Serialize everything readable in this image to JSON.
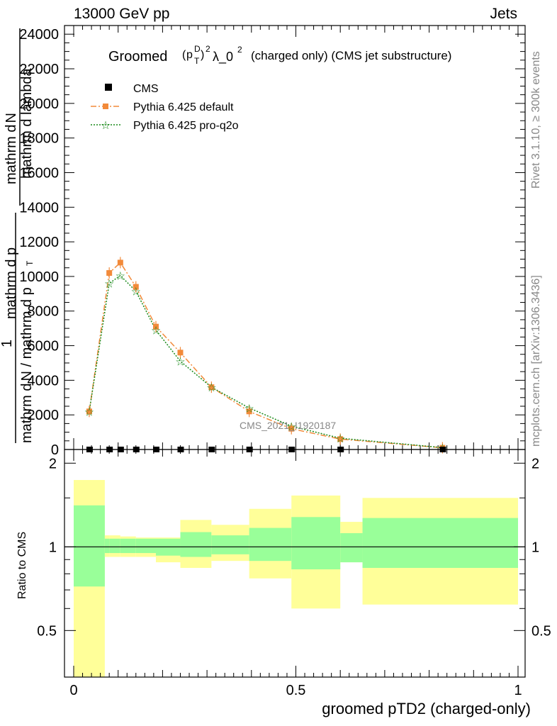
{
  "header": {
    "left": "13000 GeV pp",
    "right": "Jets"
  },
  "side_labels": {
    "rivet": "Rivet 3.1.10, ≥ 300k events",
    "mcplots": "mcplots.cern.ch [arXiv:1306.3436]"
  },
  "chart_data": [
    {
      "type": "line",
      "title": "Groomed (p_T^D)^2 λ_0^2  (charged only) (CMS jet substructure)",
      "title_parts": {
        "lead": "Groomed",
        "p": "p",
        "T": "T",
        "D": "D",
        "two": "2",
        "lam": "λ_0",
        "sup2": "2",
        "tail": "(charged only) (CMS jet substructure)"
      },
      "ylabel_line1": "mathrm d²N",
      "ylabel_line1b": "mathrm d p_T mathrm d lambda",
      "ylabel_line2": "1",
      "ylabel_line2b": "mathrm d N / mathrm d p_T",
      "ylabel_full_1": "mathrm d",
      "ylabel_full_2": "N",
      "ylabel_full_3": "mathrm d p",
      "ylabel_full_4": "T",
      "ylabel_full_5": "mathrm d lambda",
      "ylabel_full_6": "mathrm d",
      "ylabel_full_7": "N / mathrm d p",
      "ylabel_full_8": "T",
      "ylim": [
        0,
        24500
      ],
      "xlim": [
        0,
        1
      ],
      "yticks": [
        0,
        2000,
        4000,
        6000,
        8000,
        10000,
        12000,
        14000,
        16000,
        18000,
        20000,
        22000,
        24000
      ],
      "ytick_labels": [
        "0",
        "2000",
        "4000",
        "6000",
        "8000",
        "10000",
        "12000",
        "14000",
        "16000",
        "18000",
        "20000",
        "22000",
        "24000"
      ],
      "watermark": "CMS_2021_I1920187",
      "legend": {
        "placement": "top-left",
        "entries": [
          "CMS",
          "Pythia 6.425 default",
          "Pythia 6.425 pro-q2o"
        ]
      },
      "series": [
        {
          "name": "CMS",
          "color": "#000000",
          "marker": "square",
          "x": [
            0.035,
            0.08,
            0.105,
            0.14,
            0.185,
            0.24,
            0.31,
            0.395,
            0.49,
            0.6,
            0.83
          ],
          "values": [
            1,
            1,
            1,
            1,
            1,
            1,
            1,
            1,
            1,
            1,
            1
          ]
        },
        {
          "name": "Pythia 6.425 default",
          "color": "#f28a3a",
          "marker": "square",
          "x": [
            0.035,
            0.08,
            0.105,
            0.14,
            0.185,
            0.24,
            0.31,
            0.395,
            0.49,
            0.6,
            0.83
          ],
          "values": [
            2200,
            10200,
            10800,
            9400,
            7100,
            5600,
            3600,
            2200,
            1200,
            600,
            100
          ]
        },
        {
          "name": "Pythia 6.425 pro-q2o",
          "color": "#1a8a1a",
          "marker": "star",
          "x": [
            0.035,
            0.08,
            0.105,
            0.14,
            0.185,
            0.24,
            0.31,
            0.395,
            0.49,
            0.6,
            0.83
          ],
          "values": [
            2200,
            9600,
            10050,
            9150,
            6900,
            5100,
            3600,
            2400,
            1350,
            650,
            110
          ]
        }
      ]
    },
    {
      "type": "area",
      "ylabel": "Ratio to CMS",
      "xlabel": "groomed pTD2 (charged-only)",
      "xlim": [
        0,
        1
      ],
      "ylim": [
        0.34,
        2.24
      ],
      "yticks": [
        0.5,
        1,
        2
      ],
      "ytick_labels": [
        "0.5",
        "1",
        "2"
      ],
      "xticks": [
        0,
        0.5,
        1
      ],
      "xtick_labels": [
        "0",
        "0.5",
        "1"
      ],
      "colors": {
        "inner": "#99ff99",
        "outer": "#ffff99"
      },
      "bins": [
        {
          "lo": 0.0,
          "hi": 0.07,
          "inner": [
            0.72,
            1.41
          ],
          "outer": [
            0.34,
            1.74
          ]
        },
        {
          "lo": 0.07,
          "hi": 0.08,
          "inner": [
            0.95,
            1.07
          ],
          "outer": [
            0.92,
            1.1
          ]
        },
        {
          "lo": 0.08,
          "hi": 0.105,
          "inner": [
            0.95,
            1.07
          ],
          "outer": [
            0.92,
            1.1
          ]
        },
        {
          "lo": 0.105,
          "hi": 0.14,
          "inner": [
            0.95,
            1.07
          ],
          "outer": [
            0.92,
            1.09
          ]
        },
        {
          "lo": 0.14,
          "hi": 0.185,
          "inner": [
            0.95,
            1.07
          ],
          "outer": [
            0.92,
            1.08
          ]
        },
        {
          "lo": 0.185,
          "hi": 0.24,
          "inner": [
            0.93,
            1.07
          ],
          "outer": [
            0.88,
            1.08
          ]
        },
        {
          "lo": 0.24,
          "hi": 0.31,
          "inner": [
            0.92,
            1.13
          ],
          "outer": [
            0.84,
            1.25
          ]
        },
        {
          "lo": 0.31,
          "hi": 0.395,
          "inner": [
            0.94,
            1.1
          ],
          "outer": [
            0.89,
            1.2
          ]
        },
        {
          "lo": 0.395,
          "hi": 0.49,
          "inner": [
            0.89,
            1.17
          ],
          "outer": [
            0.77,
            1.37
          ]
        },
        {
          "lo": 0.49,
          "hi": 0.6,
          "inner": [
            0.83,
            1.28
          ],
          "outer": [
            0.6,
            1.53
          ]
        },
        {
          "lo": 0.6,
          "hi": 0.65,
          "inner": [
            0.88,
            1.12
          ],
          "outer": [
            0.88,
            1.23
          ]
        },
        {
          "lo": 0.65,
          "hi": 1.0,
          "inner": [
            0.84,
            1.27
          ],
          "outer": [
            0.62,
            1.5
          ]
        }
      ]
    }
  ]
}
